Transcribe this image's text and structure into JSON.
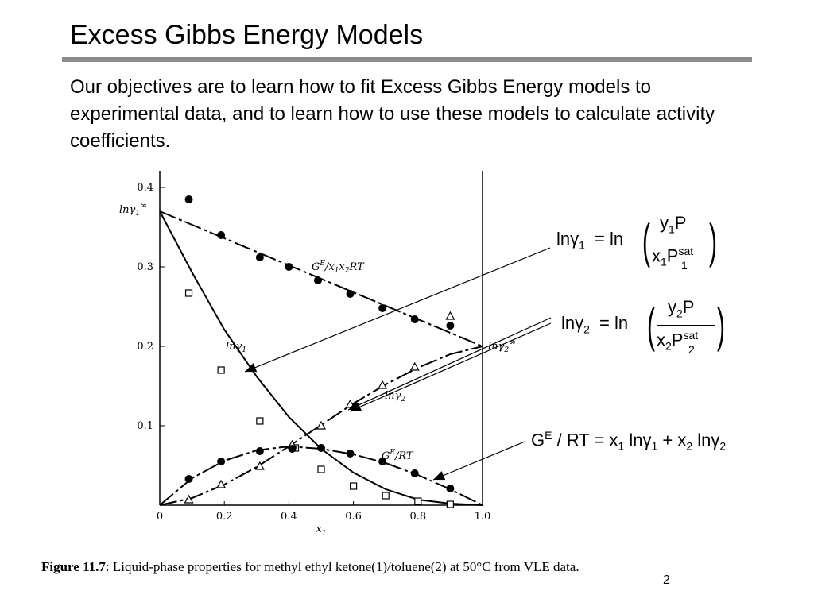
{
  "slide": {
    "title": "Excess Gibbs Energy Models",
    "objectives": "Our objectives are to learn how to fit Excess Gibbs Energy models to experimental data, and to learn how to use these models to calculate activity coefficients.",
    "page_number": "2"
  },
  "caption": {
    "label": "Figure 11.7",
    "text": ": Liquid-phase properties for methyl ethyl ketone(1)/toluene(2) at 50°C from VLE data."
  },
  "equations": {
    "eq1": {
      "lhs": "lnγ",
      "lhs_sub": "1",
      "eq": "= ln",
      "num": "y",
      "num_sub": "1",
      "num_rest": "P",
      "den": "x",
      "den_sub": "1",
      "den_rest": "P",
      "den_sup": "sat",
      "den_sub2": "1"
    },
    "eq2": {
      "lhs": "lnγ",
      "lhs_sub": "2",
      "eq": "= ln",
      "num": "y",
      "num_sub": "2",
      "num_rest": "P",
      "den": "x",
      "den_sub": "2",
      "den_rest": "P",
      "den_sup": "sat",
      "den_sub2": "2"
    },
    "eq3": {
      "g": "G",
      "g_sup": "E",
      "rest": "/ RT = x",
      "s1": "1",
      "t1": " lnγ",
      "s2": "1",
      "plus": " + x",
      "s3": "2",
      "t2": " lnγ",
      "s4": "2"
    }
  },
  "chart_data": {
    "type": "scatter",
    "xlabel": "x1",
    "ylabel": "",
    "xlim": [
      0,
      1.0
    ],
    "ylim": [
      0,
      0.42
    ],
    "x_ticks": [
      "0",
      "0.2",
      "0.4",
      "0.6",
      "0.8",
      "1.0"
    ],
    "y_ticks": [
      "0.1",
      "0.2",
      "0.3",
      "0.4"
    ],
    "endpoint_labels": {
      "left": "lnγ1∞",
      "right": "lnγ2∞"
    },
    "series": [
      {
        "name": "G^E/x1x2RT",
        "marker": "filled-circle",
        "line": "dashed",
        "points": [
          [
            0.09,
            0.385
          ],
          [
            0.19,
            0.34
          ],
          [
            0.31,
            0.312
          ],
          [
            0.4,
            0.3
          ],
          [
            0.49,
            0.283
          ],
          [
            0.59,
            0.266
          ],
          [
            0.69,
            0.248
          ],
          [
            0.79,
            0.234
          ],
          [
            0.9,
            0.226
          ]
        ],
        "fit": [
          [
            0.0,
            0.37
          ],
          [
            1.0,
            0.2
          ]
        ]
      },
      {
        "name": "lnγ1",
        "marker": "open-square",
        "line": "solid",
        "points": [
          [
            0.09,
            0.267
          ],
          [
            0.19,
            0.17
          ],
          [
            0.31,
            0.106
          ],
          [
            0.42,
            0.072
          ],
          [
            0.5,
            0.045
          ],
          [
            0.6,
            0.024
          ],
          [
            0.7,
            0.012
          ],
          [
            0.8,
            0.005
          ],
          [
            0.9,
            0.001
          ]
        ],
        "curve": [
          [
            0.0,
            0.37
          ],
          [
            0.1,
            0.293
          ],
          [
            0.2,
            0.221
          ],
          [
            0.3,
            0.162
          ],
          [
            0.4,
            0.111
          ],
          [
            0.5,
            0.071
          ],
          [
            0.6,
            0.041
          ],
          [
            0.7,
            0.02
          ],
          [
            0.8,
            0.007
          ],
          [
            0.9,
            0.002
          ],
          [
            1.0,
            0.0
          ]
        ]
      },
      {
        "name": "lnγ2",
        "marker": "open-triangle",
        "line": "dashed",
        "points": [
          [
            0.09,
            0.007
          ],
          [
            0.19,
            0.026
          ],
          [
            0.31,
            0.049
          ],
          [
            0.41,
            0.076
          ],
          [
            0.5,
            0.1
          ],
          [
            0.59,
            0.127
          ],
          [
            0.69,
            0.151
          ],
          [
            0.79,
            0.174
          ],
          [
            0.9,
            0.238
          ]
        ],
        "curve": [
          [
            0.0,
            0.0
          ],
          [
            0.1,
            0.009
          ],
          [
            0.2,
            0.026
          ],
          [
            0.3,
            0.048
          ],
          [
            0.4,
            0.074
          ],
          [
            0.5,
            0.101
          ],
          [
            0.6,
            0.128
          ],
          [
            0.7,
            0.152
          ],
          [
            0.8,
            0.173
          ],
          [
            0.9,
            0.19
          ],
          [
            1.0,
            0.2
          ]
        ]
      },
      {
        "name": "G^E/RT",
        "marker": "filled-circle",
        "line": "dashed",
        "points": [
          [
            0.09,
            0.033
          ],
          [
            0.19,
            0.055
          ],
          [
            0.31,
            0.068
          ],
          [
            0.41,
            0.071
          ],
          [
            0.5,
            0.072
          ],
          [
            0.59,
            0.065
          ],
          [
            0.69,
            0.055
          ],
          [
            0.79,
            0.04
          ],
          [
            0.9,
            0.021
          ]
        ],
        "curve": [
          [
            0.0,
            0.0
          ],
          [
            0.1,
            0.034
          ],
          [
            0.2,
            0.056
          ],
          [
            0.3,
            0.069
          ],
          [
            0.4,
            0.074
          ],
          [
            0.5,
            0.071
          ],
          [
            0.6,
            0.064
          ],
          [
            0.7,
            0.053
          ],
          [
            0.8,
            0.038
          ],
          [
            0.9,
            0.02
          ],
          [
            1.0,
            0.0
          ]
        ]
      }
    ],
    "curve_labels": [
      {
        "series": "G^E/x1x2RT",
        "text": "GE/x1x2RT"
      },
      {
        "series": "lnγ1",
        "text": "lnγ1"
      },
      {
        "series": "lnγ2",
        "text": "lnγ2"
      },
      {
        "series": "G^E/RT",
        "text": "GE/RT"
      }
    ]
  }
}
